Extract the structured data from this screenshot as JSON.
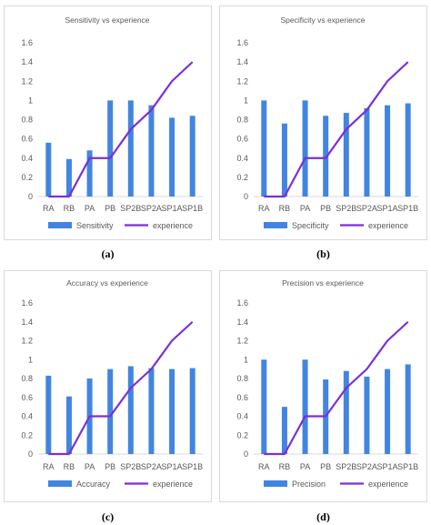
{
  "colors": {
    "bar": "#4285e0",
    "line": "#7b2fd6",
    "axis_text": "#595959",
    "grid": "#d9d9d9"
  },
  "chart_data": [
    {
      "type": "bar",
      "title": "Sensitivity vs experience",
      "categories": [
        "RA",
        "RB",
        "PA",
        "PB",
        "SP2B",
        "SP2A",
        "SP1A",
        "SP1B"
      ],
      "series": [
        {
          "name": "Sensitivity",
          "type": "bar",
          "values": [
            0.56,
            0.39,
            0.48,
            1.0,
            1.0,
            0.95,
            0.82,
            0.84
          ]
        },
        {
          "name": "experience",
          "type": "line",
          "values": [
            0,
            0,
            0.4,
            0.4,
            0.7,
            0.9,
            1.2,
            1.4
          ]
        }
      ],
      "ylim": [
        0,
        1.6
      ],
      "yticks": [
        "0",
        "0.2",
        "0.4",
        "0.6",
        "0.8",
        "1",
        "1.2",
        "1.4",
        "1.6"
      ],
      "legend": "bottom",
      "grid": false,
      "caption": "(a)"
    },
    {
      "type": "bar",
      "title": "Specificity vs experience",
      "categories": [
        "RA",
        "RB",
        "PA",
        "PB",
        "SP2B",
        "SP2A",
        "SP1A",
        "SP1B"
      ],
      "series": [
        {
          "name": "Specificity",
          "type": "bar",
          "values": [
            1.0,
            0.76,
            1.0,
            0.84,
            0.87,
            0.92,
            0.95,
            0.97
          ]
        },
        {
          "name": "experience",
          "type": "line",
          "values": [
            0,
            0,
            0.4,
            0.4,
            0.7,
            0.9,
            1.2,
            1.4
          ]
        }
      ],
      "ylim": [
        0,
        1.6
      ],
      "yticks": [
        "0",
        "0.2",
        "0.4",
        "0.6",
        "0.8",
        "1",
        "1.2",
        "1.4",
        "1.6"
      ],
      "legend": "bottom",
      "grid": false,
      "caption": "(b)"
    },
    {
      "type": "bar",
      "title": "Accuracy vs experience",
      "categories": [
        "RA",
        "RB",
        "PA",
        "PB",
        "SP2B",
        "SP2A",
        "SP1A",
        "SP1B"
      ],
      "series": [
        {
          "name": "Accuracy",
          "type": "bar",
          "values": [
            0.83,
            0.61,
            0.8,
            0.9,
            0.93,
            0.91,
            0.9,
            0.91
          ]
        },
        {
          "name": "experience",
          "type": "line",
          "values": [
            0,
            0,
            0.4,
            0.4,
            0.7,
            0.9,
            1.2,
            1.4
          ]
        }
      ],
      "ylim": [
        0,
        1.6
      ],
      "yticks": [
        "0",
        "0.2",
        "0.4",
        "0.6",
        "0.8",
        "1",
        "1.2",
        "1.4",
        "1.6"
      ],
      "legend": "bottom",
      "grid": false,
      "caption": "(c)"
    },
    {
      "type": "bar",
      "title": "Precision vs experience",
      "categories": [
        "RA",
        "RB",
        "PA",
        "PB",
        "SP2B",
        "SP2A",
        "SP1A",
        "SP1B"
      ],
      "series": [
        {
          "name": "Precision",
          "type": "bar",
          "values": [
            1.0,
            0.5,
            1.0,
            0.79,
            0.88,
            0.82,
            0.9,
            0.95
          ]
        },
        {
          "name": "experience",
          "type": "line",
          "values": [
            0,
            0,
            0.4,
            0.4,
            0.7,
            0.9,
            1.2,
            1.4
          ]
        }
      ],
      "ylim": [
        0,
        1.6
      ],
      "yticks": [
        "0",
        "0.2",
        "0.4",
        "0.6",
        "0.8",
        "1",
        "1.2",
        "1.4",
        "1.6"
      ],
      "legend": "bottom",
      "grid": false,
      "caption": "(d)"
    }
  ]
}
